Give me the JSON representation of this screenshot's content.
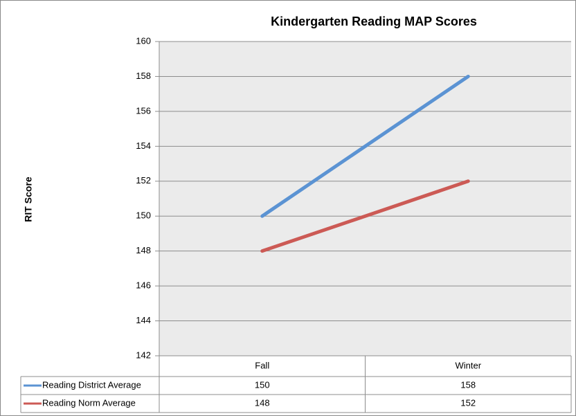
{
  "chart_data": {
    "type": "line",
    "title": "Kindergarten Reading MAP Scores",
    "y_label": "RIT Score",
    "categories": [
      "Fall",
      "Winter"
    ],
    "series": [
      {
        "name": "Reading District Average",
        "color": "#5b93d3",
        "values": [
          150,
          158
        ]
      },
      {
        "name": "Reading Norm Average",
        "color": "#cc5a55",
        "values": [
          148,
          152
        ]
      }
    ],
    "ylim": [
      142,
      160
    ],
    "yticks": [
      142,
      144,
      146,
      148,
      150,
      152,
      154,
      156,
      158,
      160
    ],
    "grid": true,
    "data_table": true
  }
}
